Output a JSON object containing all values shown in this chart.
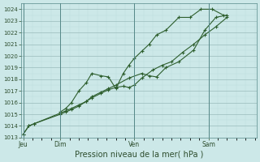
{
  "title": "",
  "xlabel": "Pression niveau de la mer( hPa )",
  "bg_color": "#cce8e8",
  "grid_major_color": "#99bbbb",
  "grid_minor_color": "#bbdddd",
  "line_color": "#2d5e2d",
  "ylim": [
    1013,
    1024.5
  ],
  "yticks": [
    1013,
    1014,
    1015,
    1016,
    1017,
    1018,
    1019,
    1020,
    1021,
    1022,
    1023,
    1024
  ],
  "day_labels": [
    "Jeu",
    "Dim",
    "Ven",
    "Sam"
  ],
  "day_positions": [
    0.0,
    1.0,
    3.0,
    5.0
  ],
  "vlines_x": [
    0.0,
    1.0,
    3.0,
    5.0
  ],
  "xlim": [
    -0.05,
    6.3
  ],
  "series1_x": [
    0.0,
    0.15,
    0.3,
    1.0,
    1.15,
    1.3,
    1.5,
    1.7,
    1.85,
    2.1,
    2.3,
    2.5,
    2.7,
    2.85,
    3.0,
    3.2,
    3.5,
    3.75,
    4.0,
    4.3,
    4.6,
    4.9,
    5.2,
    5.5
  ],
  "series1_y": [
    1013.3,
    1014.0,
    1014.2,
    1015.0,
    1015.2,
    1015.4,
    1015.7,
    1016.1,
    1016.4,
    1016.8,
    1017.1,
    1017.3,
    1017.4,
    1017.3,
    1017.5,
    1018.1,
    1018.8,
    1019.2,
    1019.5,
    1020.3,
    1021.0,
    1021.8,
    1022.5,
    1023.3
  ],
  "series2_x": [
    0.0,
    0.15,
    0.3,
    1.0,
    1.15,
    1.3,
    1.5,
    1.7,
    1.85,
    2.1,
    2.3,
    2.5,
    2.85,
    3.2,
    3.4,
    3.6,
    3.85,
    4.2,
    4.6,
    4.9,
    5.2,
    5.5
  ],
  "series2_y": [
    1013.3,
    1014.0,
    1014.2,
    1015.1,
    1015.3,
    1015.5,
    1015.8,
    1016.1,
    1016.5,
    1016.9,
    1017.2,
    1017.5,
    1018.1,
    1018.5,
    1018.3,
    1018.2,
    1019.0,
    1019.5,
    1020.5,
    1022.2,
    1023.3,
    1023.5
  ],
  "series3_x": [
    1.0,
    1.15,
    1.3,
    1.5,
    1.7,
    1.85,
    2.1,
    2.3,
    2.5,
    2.7,
    2.85,
    3.0,
    3.2,
    3.4,
    3.6,
    3.85,
    4.2,
    4.5,
    4.8,
    5.1,
    5.4
  ],
  "series3_y": [
    1015.2,
    1015.5,
    1016.0,
    1017.0,
    1017.7,
    1018.5,
    1018.3,
    1018.2,
    1017.2,
    1018.5,
    1019.2,
    1019.8,
    1020.4,
    1021.0,
    1021.8,
    1022.2,
    1023.3,
    1023.3,
    1024.0,
    1024.0,
    1023.5
  ]
}
